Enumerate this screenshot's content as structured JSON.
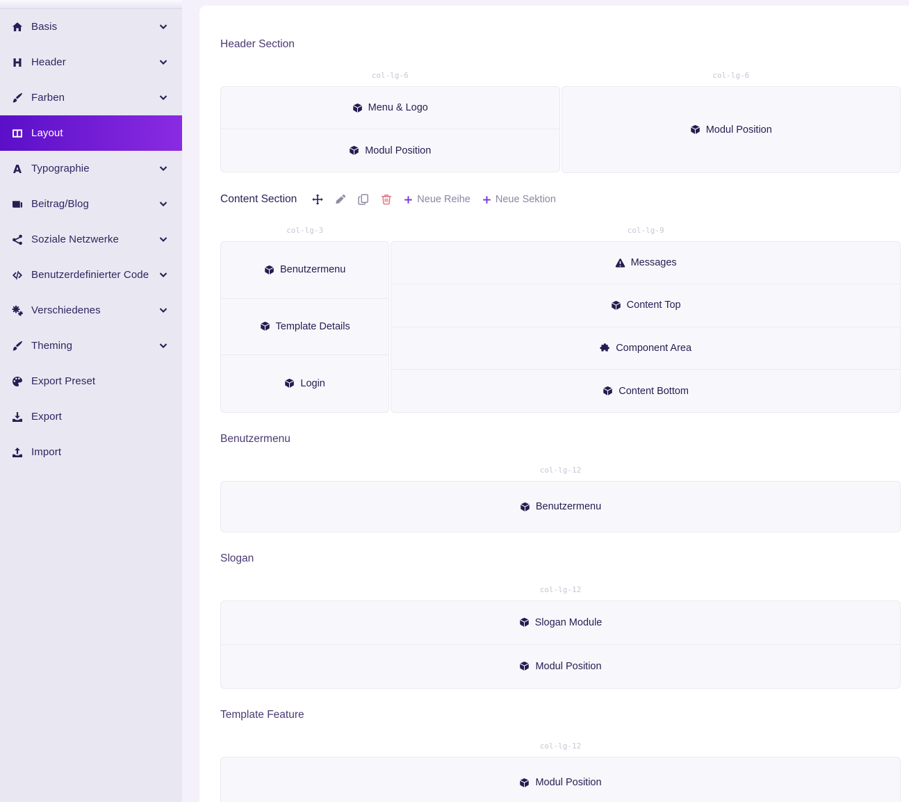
{
  "colors": {
    "accent_gradient_start": "#5a0fc8",
    "accent_gradient_end": "#8a2be2",
    "sidebar_bg": "#e9e8f2",
    "danger": "#e0737e",
    "plus_purple": "#7a3ae2"
  },
  "sidebar": {
    "items": [
      {
        "label": "Basis",
        "icon": "home",
        "expandable": true,
        "active": false
      },
      {
        "label": "Header",
        "icon": "heading",
        "expandable": true,
        "active": false
      },
      {
        "label": "Farben",
        "icon": "brush",
        "expandable": true,
        "active": false
      },
      {
        "label": "Layout",
        "icon": "columns",
        "expandable": false,
        "active": true
      },
      {
        "label": "Typographie",
        "icon": "font",
        "expandable": true,
        "active": false
      },
      {
        "label": "Beitrag/Blog",
        "icon": "newspaper",
        "expandable": true,
        "active": false
      },
      {
        "label": "Soziale Netzwerke",
        "icon": "share",
        "expandable": true,
        "active": false
      },
      {
        "label": "Benutzerdefinierter Code",
        "icon": "code",
        "expandable": true,
        "active": false
      },
      {
        "label": "Verschiedenes",
        "icon": "cogs",
        "expandable": true,
        "active": false
      },
      {
        "label": "Theming",
        "icon": "brush",
        "expandable": true,
        "active": false
      },
      {
        "label": "Export Preset",
        "icon": "palette",
        "expandable": false,
        "active": false
      },
      {
        "label": "Export",
        "icon": "download",
        "expandable": false,
        "active": false
      },
      {
        "label": "Import",
        "icon": "upload",
        "expandable": false,
        "active": false
      }
    ]
  },
  "main": {
    "sections": [
      {
        "title": "Header Section",
        "columns": [
          {
            "size_label": "col-lg-6",
            "cells": [
              {
                "label": "Menu & Logo",
                "icon": "cube"
              },
              {
                "label": "Modul Position",
                "icon": "cube"
              }
            ]
          },
          {
            "size_label": "col-lg-6",
            "cells": [
              {
                "label": "Modul Position",
                "icon": "cube"
              }
            ]
          }
        ]
      },
      {
        "title": "Content Section",
        "toolbar": {
          "icons": [
            "move",
            "pencil",
            "copy",
            "trash"
          ],
          "buttons": [
            {
              "label": "Neue Reihe",
              "icon": "plus"
            },
            {
              "label": "Neue Sektion",
              "icon": "plus"
            }
          ]
        },
        "columns": [
          {
            "size_label": "col-lg-3",
            "cells": [
              {
                "label": "Benutzermenu",
                "icon": "cube"
              },
              {
                "label": "Template Details",
                "icon": "cube"
              },
              {
                "label": "Login",
                "icon": "cube"
              }
            ]
          },
          {
            "size_label": "col-lg-9",
            "cells": [
              {
                "label": "Messages",
                "icon": "warning"
              },
              {
                "label": "Content Top",
                "icon": "cube"
              },
              {
                "label": "Component Area",
                "icon": "puzzle"
              },
              {
                "label": "Content Bottom",
                "icon": "cube"
              }
            ]
          }
        ]
      },
      {
        "title": "Benutzermenu",
        "columns": [
          {
            "size_label": "col-lg-12",
            "cells": [
              {
                "label": "Benutzermenu",
                "icon": "cube"
              }
            ]
          }
        ]
      },
      {
        "title": "Slogan",
        "columns": [
          {
            "size_label": "col-lg-12",
            "cells": [
              {
                "label": "Slogan Module",
                "icon": "cube"
              },
              {
                "label": "Modul Position",
                "icon": "cube"
              }
            ]
          }
        ]
      },
      {
        "title": "Template Feature",
        "columns": [
          {
            "size_label": "col-lg-12",
            "cells": [
              {
                "label": "Modul Position",
                "icon": "cube"
              }
            ]
          }
        ]
      }
    ]
  }
}
